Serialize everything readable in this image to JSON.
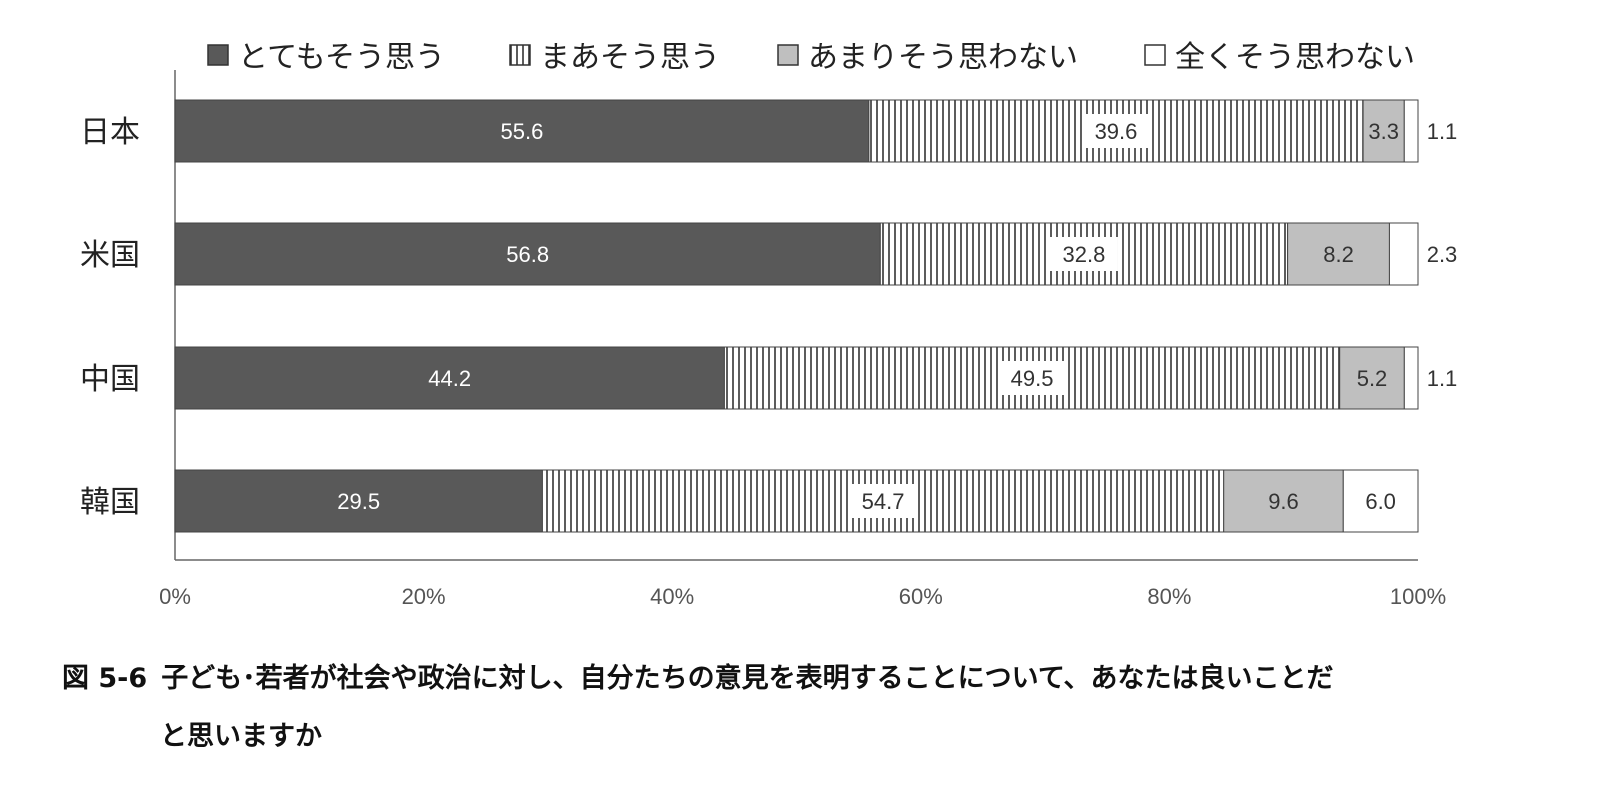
{
  "caption": {
    "number": "図 5-6",
    "line1": "子ども･若者が社会や政治に対し、自分たちの意見を表明することについて、あなたは良いことだ",
    "line2": "と思いますか"
  },
  "chart_data": {
    "type": "bar",
    "orientation": "horizontal",
    "stacked": "percent",
    "categories": [
      "日本",
      "米国",
      "中国",
      "韓国"
    ],
    "series": [
      {
        "name": "とてもそう思う",
        "values": [
          55.6,
          56.8,
          44.2,
          29.5
        ],
        "color": "#595959",
        "pattern": "solid"
      },
      {
        "name": "まあそう思う",
        "values": [
          39.6,
          32.8,
          49.5,
          54.7
        ],
        "color": "#ffffff",
        "pattern": "vertical-stripes"
      },
      {
        "name": "あまりそう思わない",
        "values": [
          3.3,
          8.2,
          5.2,
          9.6
        ],
        "color": "#bfbfbf",
        "pattern": "solid"
      },
      {
        "name": "全くそう思わない",
        "values": [
          1.1,
          2.3,
          1.1,
          6.0
        ],
        "color": "#ffffff",
        "pattern": "solid"
      }
    ],
    "data_labels": [
      [
        "55.6",
        "39.6",
        "3.3",
        "1.1"
      ],
      [
        "56.8",
        "32.8",
        "8.2",
        "2.3"
      ],
      [
        "44.2",
        "49.5",
        "5.2",
        "1.1"
      ],
      [
        "29.5",
        "54.7",
        "9.6",
        "6.0"
      ]
    ],
    "x_ticks": [
      "0%",
      "20%",
      "40%",
      "60%",
      "80%",
      "100%"
    ],
    "xlim": [
      0,
      100
    ],
    "legend_position": "top",
    "grid": false
  }
}
